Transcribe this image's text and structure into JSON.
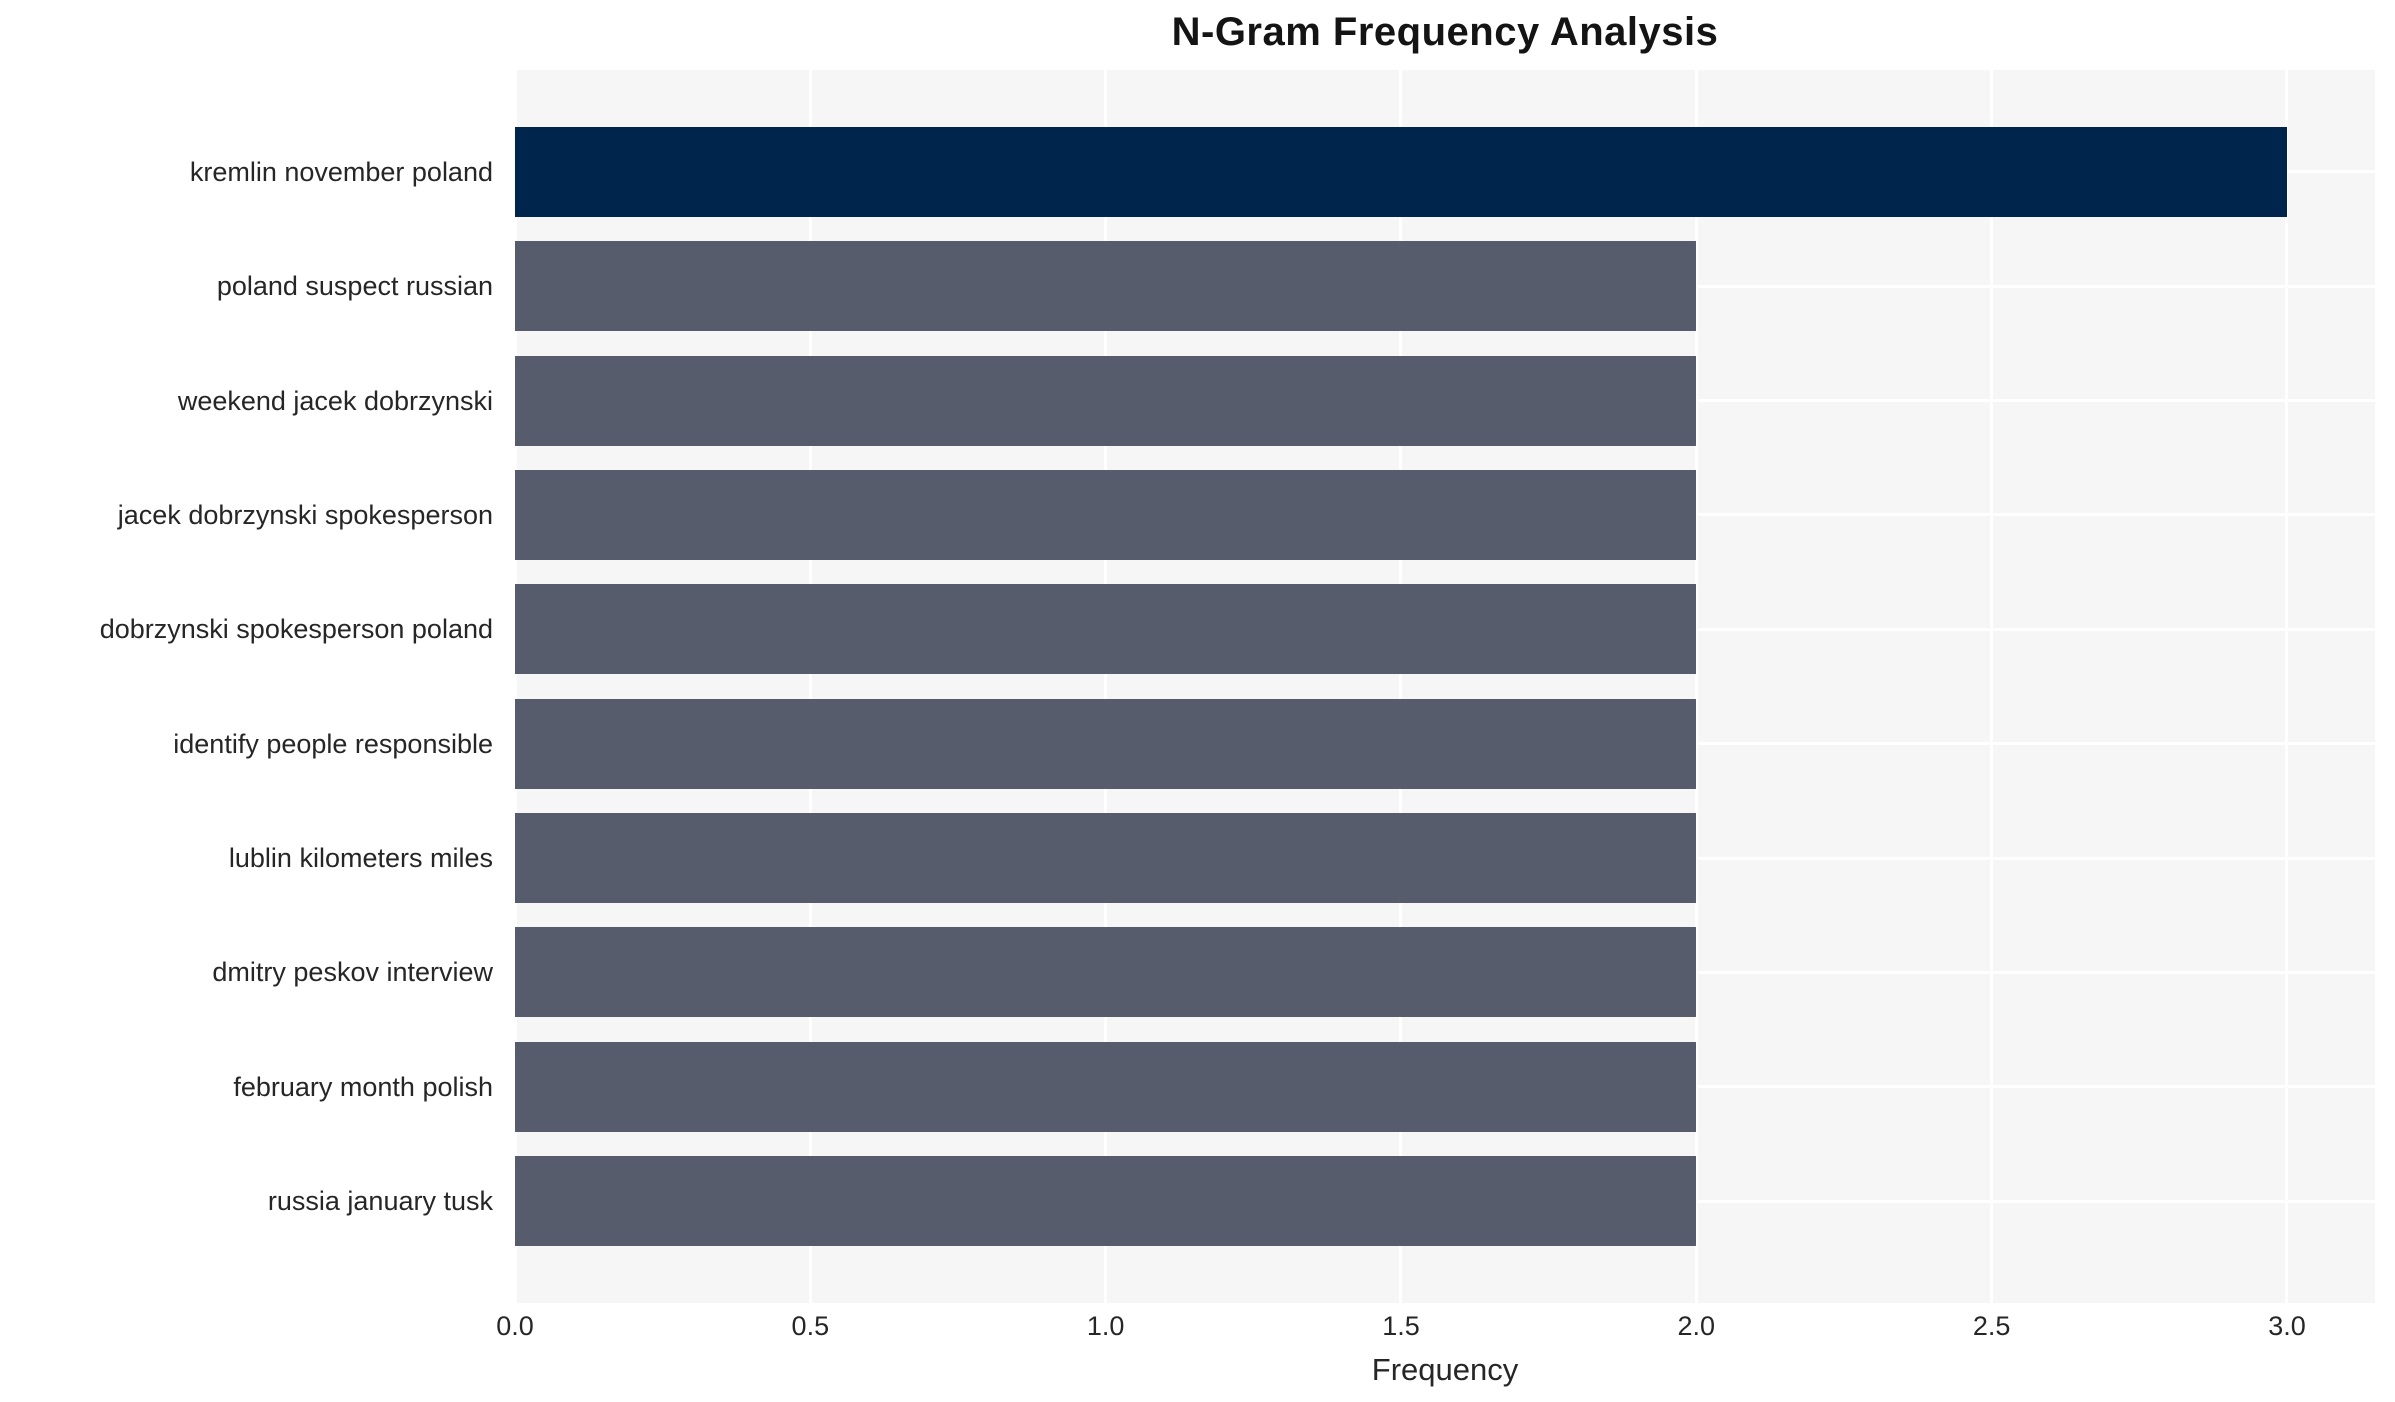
{
  "chart_data": {
    "type": "bar",
    "orientation": "horizontal",
    "title": "N-Gram Frequency Analysis",
    "xlabel": "Frequency",
    "ylabel": "",
    "categories": [
      "kremlin november poland",
      "poland suspect russian",
      "weekend jacek dobrzynski",
      "jacek dobrzynski spokesperson",
      "dobrzynski spokesperson poland",
      "identify people responsible",
      "lublin kilometers miles",
      "dmitry peskov interview",
      "february month polish",
      "russia january tusk"
    ],
    "values": [
      3,
      2,
      2,
      2,
      2,
      2,
      2,
      2,
      2,
      2
    ],
    "bar_colors": [
      "#00254d",
      "#565c6b",
      "#565c6b",
      "#565c6b",
      "#565c6b",
      "#565c6b",
      "#565c6b",
      "#565c6b",
      "#565c6b",
      "#565c6b"
    ],
    "xlim": [
      0,
      3.149
    ],
    "xticks": [
      {
        "value": 0.0,
        "label": "0.0"
      },
      {
        "value": 0.5,
        "label": "0.5"
      },
      {
        "value": 1.0,
        "label": "1.0"
      },
      {
        "value": 1.5,
        "label": "1.5"
      },
      {
        "value": 2.0,
        "label": "2.0"
      },
      {
        "value": 2.5,
        "label": "2.5"
      },
      {
        "value": 3.0,
        "label": "3.0"
      }
    ],
    "grid": true,
    "legend": false,
    "colors": {
      "highlight_bar": "#00254d",
      "default_bar": "#565c6b",
      "plot_background": "#f6f6f7",
      "gridline": "#ffffff",
      "tick_text": "#262626",
      "title_text": "#141414",
      "page_background": "#ffffff"
    }
  }
}
